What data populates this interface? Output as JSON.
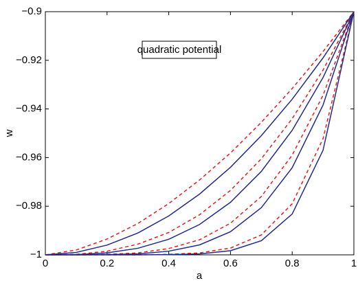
{
  "chart_data": {
    "type": "line",
    "xlabel": "a",
    "ylabel": "w",
    "annotation": "quadratic potential",
    "x": [
      0,
      0.1,
      0.2,
      0.3,
      0.4,
      0.5,
      0.6,
      0.7,
      0.8,
      0.9,
      1
    ],
    "series": [
      {
        "color": "#e41a1c",
        "dashed": true,
        "values": [
          -1,
          -0.998,
          -0.9935,
          -0.9871,
          -0.9789,
          -0.9692,
          -0.9581,
          -0.9455,
          -0.9316,
          -0.9164,
          -0.9
        ]
      },
      {
        "color": "#1f2a8c",
        "dashed": false,
        "values": [
          -1,
          -0.999,
          -0.996,
          -0.991,
          -0.984,
          -0.975,
          -0.964,
          -0.951,
          -0.936,
          -0.919,
          -0.9
        ]
      },
      {
        "color": "#e41a1c",
        "dashed": true,
        "values": [
          -1,
          -0.9998,
          -0.9985,
          -0.9956,
          -0.9908,
          -0.9835,
          -0.9735,
          -0.9605,
          -0.944,
          -0.924,
          -0.9
        ]
      },
      {
        "color": "#1f2a8c",
        "dashed": false,
        "values": [
          -1,
          -0.9999,
          -0.9992,
          -0.9973,
          -0.9936,
          -0.9875,
          -0.9784,
          -0.9657,
          -0.9488,
          -0.9271,
          -0.9
        ]
      },
      {
        "color": "#e41a1c",
        "dashed": true,
        "values": [
          -1,
          -1,
          -0.9998,
          -0.9992,
          -0.9974,
          -0.9938,
          -0.987,
          -0.976,
          -0.959,
          -0.9344,
          -0.9
        ]
      },
      {
        "color": "#1f2a8c",
        "dashed": false,
        "values": [
          -1,
          -1,
          -0.9999,
          -0.9996,
          -0.9985,
          -0.9959,
          -0.9905,
          -0.9806,
          -0.9642,
          -0.9384,
          -0.9
        ]
      },
      {
        "color": "#e41a1c",
        "dashed": true,
        "values": [
          -1,
          -1,
          -1,
          -1,
          -0.9998,
          -0.9992,
          -0.9972,
          -0.9918,
          -0.979,
          -0.9522,
          -0.9
        ]
      },
      {
        "color": "#1f2a8c",
        "dashed": false,
        "values": [
          -1,
          -1,
          -1,
          -1,
          -0.9999,
          -0.9996,
          -0.9983,
          -0.9942,
          -0.9832,
          -0.957,
          -0.9
        ]
      }
    ],
    "xlim": [
      0,
      1
    ],
    "xticks": [
      0,
      0.2,
      0.4,
      0.6,
      0.8,
      1
    ],
    "ylim": [
      -1,
      -0.9
    ],
    "yticks": [
      {
        "value": -1,
        "label": "−1"
      },
      {
        "value": -0.98,
        "label": "−0.98"
      },
      {
        "value": -0.96,
        "label": "−0.96"
      },
      {
        "value": -0.94,
        "label": "−0.94"
      },
      {
        "value": -0.92,
        "label": "−0.92"
      },
      {
        "value": -0.9,
        "label": "−0.9"
      }
    ],
    "grid": false
  }
}
